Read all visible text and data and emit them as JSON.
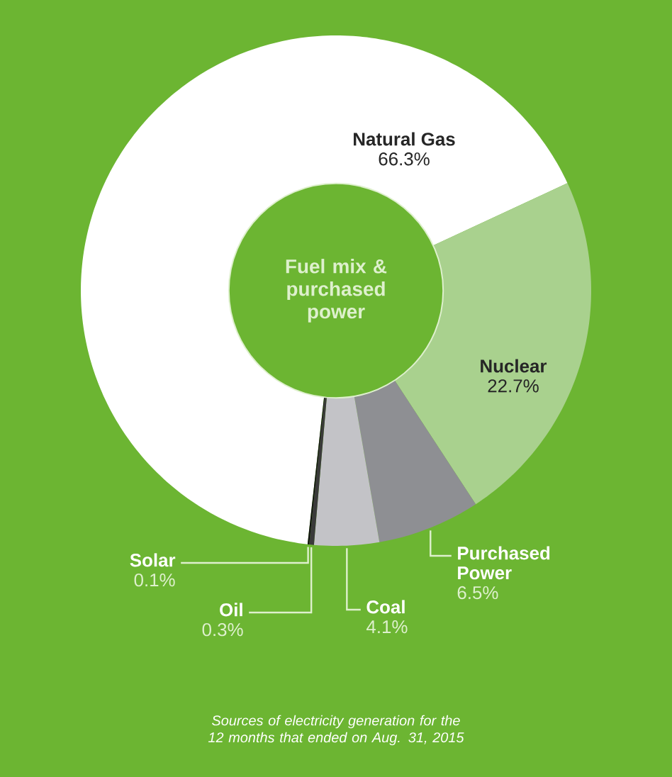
{
  "chart_data": {
    "type": "donut",
    "title": "Fuel mix & purchased power",
    "categories": [
      "Natural Gas",
      "Nuclear",
      "Purchased Power",
      "Coal",
      "Oil",
      "Solar"
    ],
    "values": [
      66.3,
      22.7,
      6.5,
      4.1,
      0.3,
      0.1
    ],
    "value_labels": [
      "66.3%",
      "22.7%",
      "6.5%",
      "4.1%",
      "0.3%",
      "0.1%"
    ],
    "colors": [
      "#ffffff",
      "#a9d18e",
      "#8e8f93",
      "#c3c3c7",
      "#3a3a3a",
      "#111111"
    ],
    "annotations": [
      "Sources of electricity generation for the 12 months that ended on Aug. 31, 2015"
    ]
  }
}
